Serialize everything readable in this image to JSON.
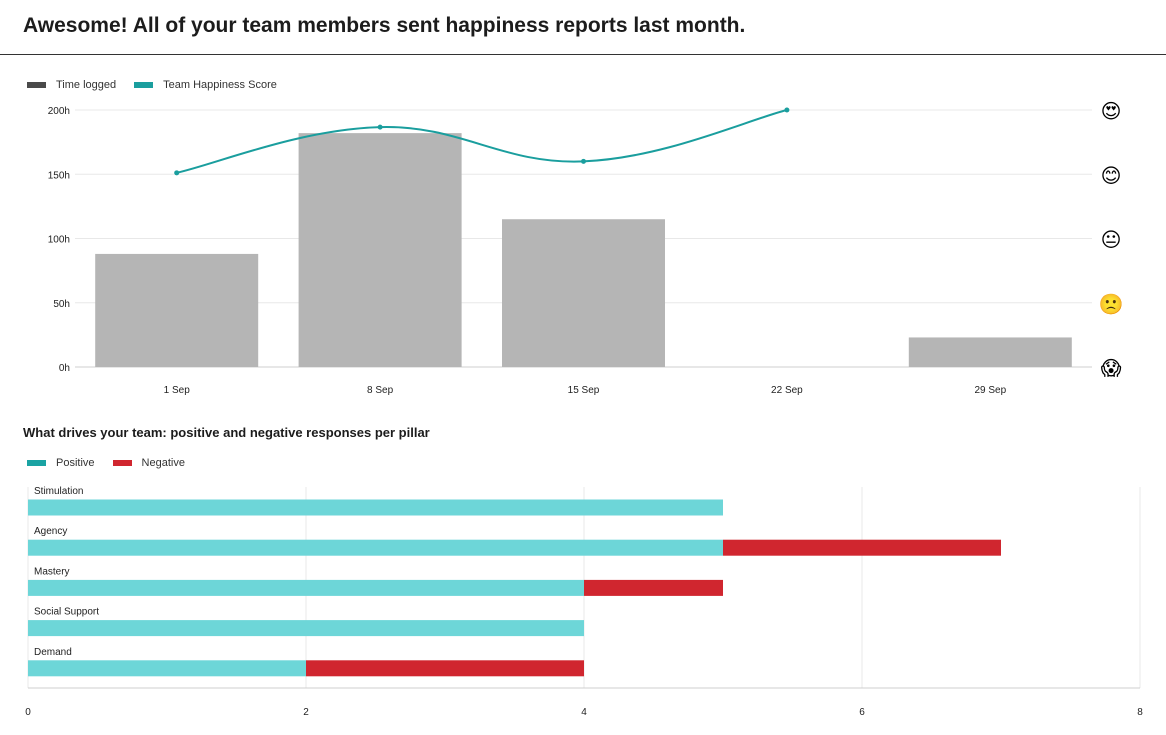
{
  "header": {
    "title": "Awesome! All of your team members sent happiness reports last month."
  },
  "colors": {
    "time_logged": "#b5b5b5",
    "time_logged_legend": "#4a4a4a",
    "happiness": "#1a9e9e",
    "positive": "#6dd6d8",
    "positive_legend": "#1aa3a3",
    "negative": "#d0262f",
    "grid": "#e8e8e8"
  },
  "chart_data": [
    {
      "type": "bar",
      "title": "",
      "legend": [
        {
          "name": "Time logged",
          "color_key": "time_logged_legend"
        },
        {
          "name": "Team Happiness Score",
          "color_key": "happiness"
        }
      ],
      "categories": [
        "1 Sep",
        "8 Sep",
        "15 Sep",
        "22 Sep",
        "29 Sep"
      ],
      "series": [
        {
          "name": "Time logged",
          "type": "bar",
          "values": [
            88,
            182,
            115,
            0,
            23
          ]
        },
        {
          "name": "Team Happiness Score",
          "type": "line",
          "values": [
            3.4,
            4.2,
            3.6,
            4.5,
            null
          ]
        }
      ],
      "ylim": [
        0,
        200
      ],
      "yticks": [
        0,
        50,
        100,
        150,
        200
      ],
      "ytick_labels": [
        "0h",
        "50h",
        "100h",
        "150h",
        "200h"
      ],
      "y2lim": [
        0,
        4.5
      ],
      "y2_icons": [
        "😱",
        "🙁",
        "😐",
        "😊",
        "😍"
      ],
      "grid": true
    },
    {
      "type": "bar",
      "orientation": "horizontal",
      "stacked": true,
      "title": "What drives your team: positive and negative responses per pillar",
      "legend": [
        {
          "name": "Positive",
          "color_key": "positive_legend"
        },
        {
          "name": "Negative",
          "color_key": "negative"
        }
      ],
      "categories": [
        "Stimulation",
        "Agency",
        "Mastery",
        "Social Support",
        "Demand"
      ],
      "series": [
        {
          "name": "Positive",
          "values": [
            5,
            5,
            4,
            4,
            2
          ]
        },
        {
          "name": "Negative",
          "values": [
            0,
            2,
            1,
            0,
            2
          ]
        }
      ],
      "xlim": [
        0,
        8
      ],
      "xticks": [
        0,
        2,
        4,
        6,
        8
      ],
      "grid": true
    }
  ]
}
